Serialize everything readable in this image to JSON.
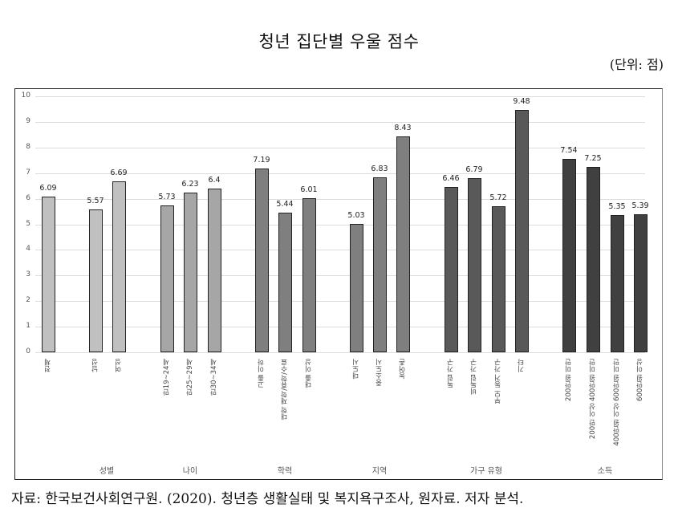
{
  "header": {
    "title": "청년 집단별 우울 점수",
    "unit": "(단위: 점)"
  },
  "footer": {
    "source": "자료: 한국보건사회연구원. (2020). 청년층 생활실태 및 복지욕구조사, 원자료. 저자 분석."
  },
  "colors": {
    "전체": "#c0c0c0",
    "성별": "#c0c0c0",
    "나이": "#a6a6a6",
    "학력": "#7f7f7f",
    "지역": "#7f7f7f",
    "가구 유형": "#595959",
    "소득": "#404040"
  },
  "chart_data": {
    "type": "bar",
    "title": "청년 집단별 우울 점수",
    "subtitle": "(단위: 점)",
    "xlabel": "",
    "ylabel": "",
    "ylim": [
      0,
      10
    ],
    "yticks": [
      0,
      1,
      2,
      3,
      4,
      5,
      6,
      7,
      8,
      9,
      10
    ],
    "grid": true,
    "legend": "none",
    "groups": [
      "",
      "성별",
      "나이",
      "학력",
      "지역",
      "가구 유형",
      "소득"
    ],
    "categories": [
      "전체",
      "남성",
      "여성",
      "만19~24세",
      "만25~29세",
      "만30~34세",
      "고졸 이하",
      "대학 재학/휴학/수료",
      "대졸 이상",
      "대도시",
      "중소도시",
      "농어촌",
      "독립 가구",
      "비독립 가구",
      "부모 동거 가구",
      "기타",
      "200만원 미만",
      "200만 이상 400만원 미만",
      "400만원 이상 600만원 미만",
      "600만원 이상"
    ],
    "category_groups": [
      "",
      "성별",
      "성별",
      "나이",
      "나이",
      "나이",
      "학력",
      "학력",
      "학력",
      "지역",
      "지역",
      "지역",
      "가구 유형",
      "가구 유형",
      "가구 유형",
      "가구 유형",
      "소득",
      "소득",
      "소득",
      "소득"
    ],
    "values": [
      6.09,
      5.57,
      6.69,
      5.73,
      6.23,
      6.4,
      7.19,
      5.44,
      6.01,
      5.03,
      6.83,
      8.43,
      6.46,
      6.79,
      5.72,
      9.48,
      7.54,
      7.25,
      5.35,
      5.39
    ],
    "value_labels": [
      "6.09",
      "5.57",
      "6.69",
      "5.73",
      "6.23",
      "6.4",
      "7.19",
      "5.44",
      "6.01",
      "5.03",
      "6.83",
      "8.43",
      "6.46",
      "6.79",
      "5.72",
      "9.48",
      "7.54",
      "7.25",
      "5.35",
      "5.39"
    ]
  }
}
